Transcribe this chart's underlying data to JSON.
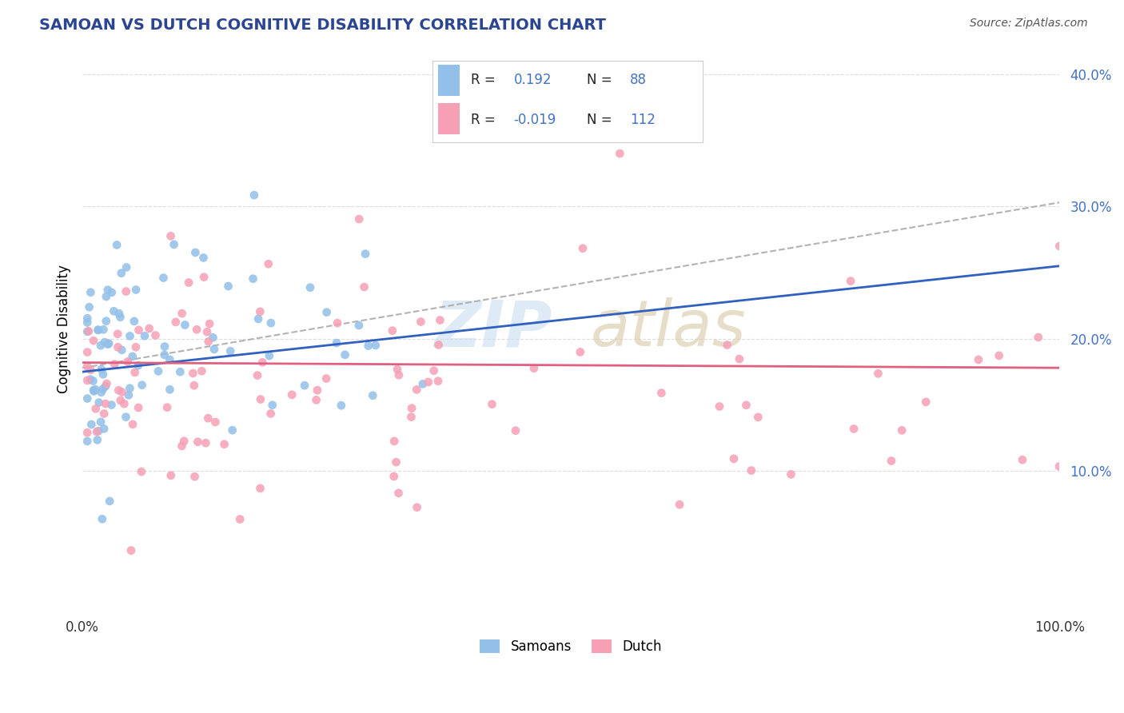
{
  "title": "SAMOAN VS DUTCH COGNITIVE DISABILITY CORRELATION CHART",
  "source": "Source: ZipAtlas.com",
  "ylabel": "Cognitive Disability",
  "xlim": [
    0.0,
    1.0
  ],
  "ylim": [
    -0.005,
    0.42
  ],
  "samoan_color": "#92C0E8",
  "dutch_color": "#F5A0B5",
  "samoan_R": 0.192,
  "samoan_N": 88,
  "dutch_R": -0.019,
  "dutch_N": 112,
  "background_color": "#ffffff",
  "grid_color": "#dddddd",
  "blue_line_color": "#3060C0",
  "pink_line_color": "#E06080",
  "gray_dash_color": "#aaaaaa",
  "ytick_vals": [
    0.1,
    0.2,
    0.3,
    0.4
  ],
  "ytick_labels": [
    "10.0%",
    "20.0%",
    "30.0%",
    "40.0%"
  ],
  "title_color": "#2B4590",
  "source_color": "#555555",
  "tick_color": "#4472C4",
  "legend_text_color": "#222222",
  "legend_value_color": "#4472C4"
}
